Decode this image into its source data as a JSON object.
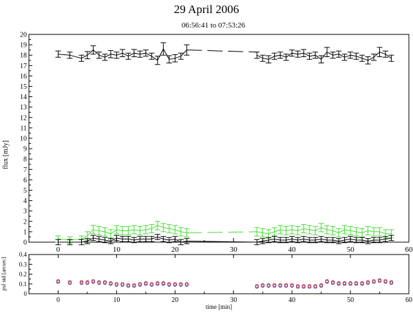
{
  "header": {
    "title": "29 April 2006",
    "subtitle": "06:56:41 to 07:53:26"
  },
  "colors": {
    "black": "#000000",
    "green": "#44dd33",
    "red": "#cc2222",
    "blue": "#3333aa"
  },
  "chart_data": [
    {
      "type": "line",
      "ylabel": "flux [mJy]",
      "xlim": [
        -5,
        60
      ],
      "ylim": [
        0,
        20
      ],
      "x_ticks": [
        "0",
        "10",
        "20",
        "30",
        "40",
        "50",
        "60"
      ],
      "y_ticks": [
        "0",
        "1",
        "2",
        "3",
        "4",
        "5",
        "6",
        "7",
        "8",
        "9",
        "10",
        "11",
        "12",
        "13",
        "14",
        "15",
        "16",
        "17",
        "18",
        "19",
        "20"
      ],
      "series": [
        {
          "color": "#000000",
          "x": [
            0,
            2,
            4,
            5,
            6,
            7,
            8,
            9,
            10,
            11,
            12,
            13,
            14,
            15,
            16,
            17,
            18,
            19,
            20,
            21,
            22,
            34,
            35,
            36,
            37,
            38,
            39,
            40,
            41,
            42,
            43,
            44,
            45,
            46,
            47,
            48,
            49,
            50,
            51,
            52,
            53,
            54,
            55,
            56,
            57
          ],
          "y": [
            18.1,
            18.0,
            17.7,
            18.0,
            18.5,
            18.0,
            17.8,
            18.1,
            18.0,
            18.2,
            17.9,
            18.2,
            18.1,
            18.2,
            17.9,
            17.5,
            18.6,
            17.6,
            17.7,
            17.9,
            18.5,
            18.0,
            17.7,
            17.6,
            17.9,
            18.0,
            17.8,
            18.2,
            18.1,
            18.2,
            17.9,
            18.0,
            17.6,
            18.3,
            18.0,
            18.1,
            17.8,
            18.0,
            17.9,
            17.7,
            17.5,
            17.8,
            18.3,
            18.1,
            17.7
          ],
          "err": [
            0.3,
            0.3,
            0.3,
            0.35,
            0.4,
            0.3,
            0.3,
            0.35,
            0.3,
            0.35,
            0.3,
            0.35,
            0.3,
            0.3,
            0.3,
            0.4,
            0.6,
            0.35,
            0.35,
            0.3,
            0.5,
            0.3,
            0.3,
            0.35,
            0.3,
            0.3,
            0.3,
            0.3,
            0.3,
            0.35,
            0.3,
            0.3,
            0.35,
            0.45,
            0.3,
            0.3,
            0.3,
            0.3,
            0.3,
            0.3,
            0.35,
            0.3,
            0.45,
            0.3,
            0.3
          ],
          "gap_start": 22,
          "gap_end": 34,
          "gap_y": [
            18.5,
            18.3
          ]
        },
        {
          "color": "#44dd33",
          "x": [
            0,
            2,
            4,
            5,
            6,
            7,
            8,
            9,
            10,
            11,
            12,
            13,
            14,
            15,
            16,
            17,
            18,
            19,
            20,
            21,
            22,
            34,
            35,
            36,
            37,
            38,
            39,
            40,
            41,
            42,
            43,
            44,
            45,
            46,
            47,
            48,
            49,
            50,
            51,
            52,
            53,
            54,
            55,
            56,
            57
          ],
          "y": [
            0.3,
            0.2,
            0.3,
            0.6,
            1.2,
            1.1,
            1.0,
            0.8,
            1.2,
            1.1,
            1.1,
            1.2,
            1.1,
            1.2,
            1.3,
            1.6,
            1.4,
            1.3,
            1.2,
            1.0,
            0.9,
            1.0,
            0.9,
            0.8,
            1.0,
            1.2,
            1.1,
            1.2,
            1.1,
            1.3,
            1.2,
            1.1,
            1.4,
            1.2,
            1.1,
            0.9,
            1.2,
            1.1,
            1.0,
            0.9,
            1.1,
            1.0,
            1.0,
            0.8,
            0.8
          ],
          "err": [
            0.3,
            0.3,
            0.3,
            0.4,
            0.4,
            0.4,
            0.4,
            0.4,
            0.4,
            0.4,
            0.4,
            0.4,
            0.4,
            0.4,
            0.4,
            0.4,
            0.4,
            0.4,
            0.4,
            0.4,
            0.4,
            0.4,
            0.4,
            0.4,
            0.4,
            0.4,
            0.4,
            0.4,
            0.4,
            0.4,
            0.4,
            0.4,
            0.4,
            0.4,
            0.4,
            0.4,
            0.4,
            0.4,
            0.4,
            0.4,
            0.4,
            0.4,
            0.4,
            0.4,
            0.4
          ],
          "gap_start": 22,
          "gap_end": 34,
          "gap_y": [
            0.9,
            1.0
          ]
        },
        {
          "color": "#000000",
          "x": [
            0,
            2,
            4,
            5,
            6,
            7,
            8,
            9,
            10,
            11,
            12,
            13,
            14,
            15,
            16,
            17,
            18,
            19,
            20,
            21,
            22,
            34,
            35,
            36,
            37,
            38,
            39,
            40,
            41,
            42,
            43,
            44,
            45,
            46,
            47,
            48,
            49,
            50,
            51,
            52,
            53,
            54,
            55,
            56,
            57
          ],
          "y": [
            0.0,
            0.0,
            0.0,
            0.1,
            0.4,
            0.3,
            0.2,
            0.1,
            0.4,
            0.3,
            0.3,
            0.2,
            0.3,
            0.3,
            0.3,
            0.5,
            0.3,
            0.2,
            0.3,
            0.0,
            0.1,
            0.0,
            0.1,
            0.2,
            0.3,
            0.2,
            0.2,
            0.3,
            0.2,
            0.3,
            0.2,
            0.2,
            0.3,
            0.2,
            0.2,
            0.1,
            0.2,
            0.3,
            0.2,
            0.2,
            0.1,
            0.2,
            0.2,
            0.3,
            0.4
          ],
          "err": [
            0.25,
            0.25,
            0.25,
            0.25,
            0.25,
            0.25,
            0.25,
            0.25,
            0.25,
            0.25,
            0.25,
            0.25,
            0.25,
            0.25,
            0.25,
            0.25,
            0.25,
            0.25,
            0.25,
            0.25,
            0.25,
            0.25,
            0.25,
            0.25,
            0.25,
            0.25,
            0.25,
            0.25,
            0.25,
            0.25,
            0.25,
            0.25,
            0.25,
            0.25,
            0.25,
            0.25,
            0.25,
            0.25,
            0.25,
            0.25,
            0.25,
            0.25,
            0.25,
            0.25,
            0.25
          ]
        }
      ]
    },
    {
      "type": "scatter",
      "ylabel": "psf std [arcsec]",
      "xlabel": "time [min]",
      "xlim": [
        -5,
        60
      ],
      "ylim": [
        0,
        0.4
      ],
      "x_ticks": [
        "0",
        "10",
        "20",
        "30",
        "40",
        "50",
        "60"
      ],
      "y_ticks": [
        "0",
        "0.1",
        "0.2",
        "0.3",
        "0.4"
      ],
      "x": [
        0,
        2,
        4,
        5,
        6,
        7,
        8,
        9,
        10,
        11,
        12,
        13,
        14,
        15,
        16,
        17,
        18,
        19,
        20,
        21,
        22,
        34,
        35,
        36,
        37,
        38,
        39,
        40,
        41,
        42,
        43,
        44,
        45,
        46,
        47,
        48,
        49,
        50,
        51,
        52,
        53,
        54,
        55,
        56,
        57
      ],
      "y_red": [
        0.13,
        0.12,
        0.12,
        0.12,
        0.13,
        0.12,
        0.12,
        0.11,
        0.1,
        0.1,
        0.09,
        0.09,
        0.1,
        0.11,
        0.1,
        0.11,
        0.11,
        0.1,
        0.1,
        0.1,
        0.1,
        0.08,
        0.09,
        0.09,
        0.09,
        0.09,
        0.09,
        0.09,
        0.08,
        0.08,
        0.08,
        0.08,
        0.09,
        0.13,
        0.12,
        0.11,
        0.11,
        0.11,
        0.11,
        0.11,
        0.12,
        0.13,
        0.14,
        0.13,
        0.12
      ],
      "y_blue": [
        0.12,
        0.11,
        0.11,
        0.11,
        0.12,
        0.11,
        0.11,
        0.1,
        0.09,
        0.09,
        0.08,
        0.08,
        0.09,
        0.1,
        0.09,
        0.1,
        0.1,
        0.09,
        0.09,
        0.09,
        0.09,
        0.07,
        0.08,
        0.08,
        0.08,
        0.08,
        0.08,
        0.08,
        0.07,
        0.07,
        0.07,
        0.07,
        0.08,
        0.12,
        0.11,
        0.1,
        0.1,
        0.1,
        0.1,
        0.1,
        0.11,
        0.12,
        0.13,
        0.12,
        0.11
      ]
    }
  ]
}
